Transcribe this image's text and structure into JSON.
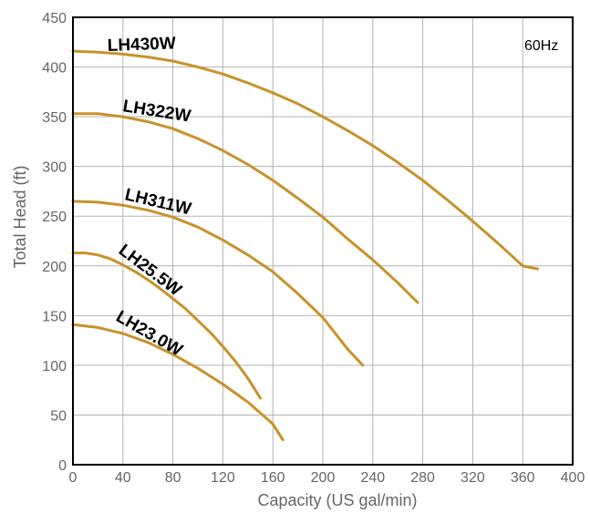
{
  "chart_data": {
    "type": "line",
    "xlabel": "Capacity (US gal/min)",
    "ylabel": "Total Head (ft)",
    "xlim": [
      0,
      400
    ],
    "ylim": [
      0,
      450
    ],
    "xticks": [
      0,
      40,
      80,
      120,
      160,
      200,
      240,
      280,
      320,
      360,
      400
    ],
    "yticks": [
      0,
      50,
      100,
      150,
      200,
      250,
      300,
      350,
      400,
      450
    ],
    "grid": true,
    "annotation": "60Hz",
    "line_color": "#c8922a",
    "grid_color": "#b3b3b3",
    "series": [
      {
        "name": "LH430W",
        "x": [
          0,
          20,
          40,
          60,
          80,
          100,
          120,
          140,
          160,
          180,
          200,
          220,
          240,
          260,
          280,
          300,
          320,
          340,
          360,
          372
        ],
        "y": [
          416,
          415,
          413,
          410,
          406,
          400,
          393,
          384,
          374,
          363,
          350,
          336,
          321,
          304,
          286,
          266,
          245,
          223,
          200,
          197
        ]
      },
      {
        "name": "LH322W",
        "x": [
          0,
          20,
          40,
          60,
          80,
          100,
          120,
          140,
          160,
          180,
          200,
          220,
          240,
          260,
          276
        ],
        "y": [
          353,
          353,
          350,
          345,
          338,
          328,
          316,
          302,
          286,
          268,
          249,
          227,
          206,
          183,
          163
        ]
      },
      {
        "name": "LH311W",
        "x": [
          0,
          20,
          40,
          60,
          80,
          100,
          120,
          140,
          160,
          180,
          200,
          220,
          232
        ],
        "y": [
          265,
          264,
          261,
          256,
          249,
          239,
          226,
          211,
          194,
          172,
          148,
          116,
          100
        ]
      },
      {
        "name": "LH25.5W",
        "x": [
          0,
          10,
          20,
          30,
          40,
          50,
          60,
          70,
          80,
          90,
          100,
          110,
          120,
          130,
          140,
          150
        ],
        "y": [
          213,
          213,
          211,
          207,
          201,
          194,
          186,
          177,
          167,
          157,
          145,
          133,
          119,
          104,
          87,
          67
        ]
      },
      {
        "name": "LH23.0W",
        "x": [
          0,
          20,
          40,
          60,
          80,
          100,
          120,
          140,
          160,
          168
        ],
        "y": [
          141,
          138,
          132,
          123,
          111,
          97,
          81,
          63,
          41,
          25
        ]
      }
    ]
  }
}
